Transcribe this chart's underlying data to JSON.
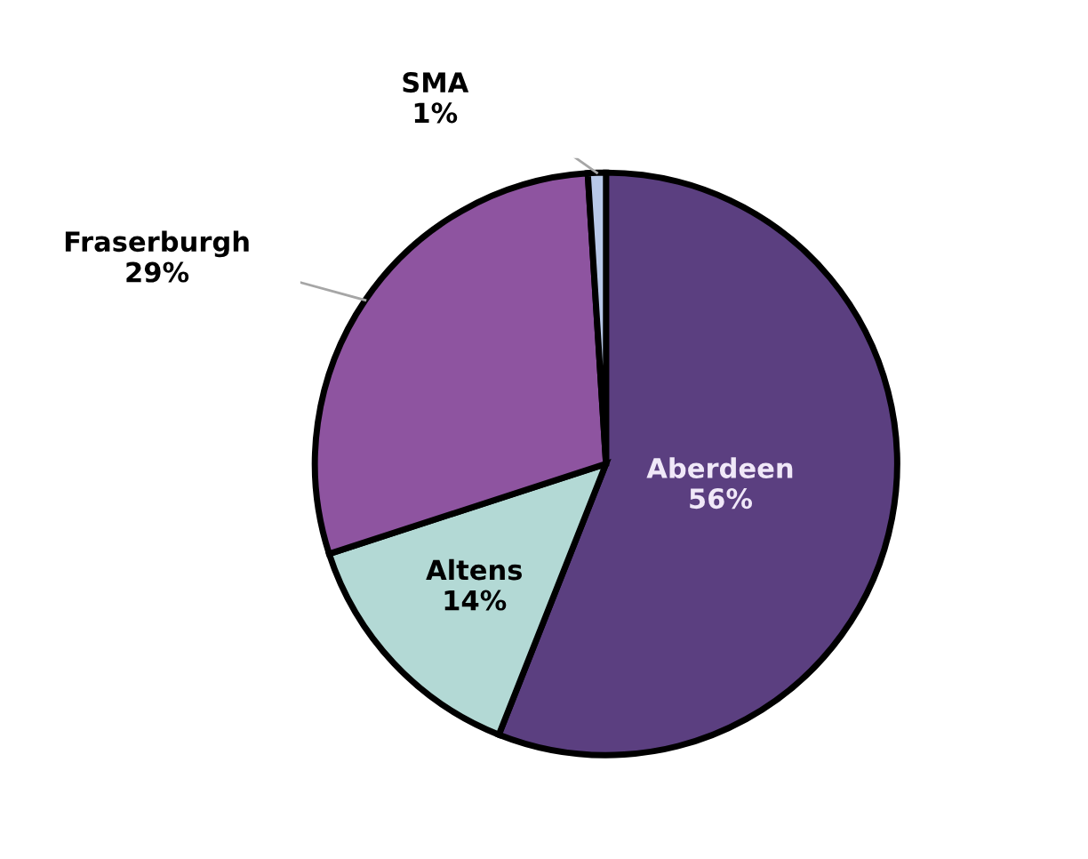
{
  "chart_data": {
    "type": "pie",
    "categories": [
      "Aberdeen",
      "Altens",
      "Fraserburgh",
      "SMA"
    ],
    "values": [
      56,
      14,
      29,
      1
    ],
    "colors": [
      "#5b3f80",
      "#b3d9d5",
      "#8e54a0",
      "#b8c8e8"
    ],
    "value_labels": [
      "56%",
      "14%",
      "29%",
      "1%"
    ]
  }
}
